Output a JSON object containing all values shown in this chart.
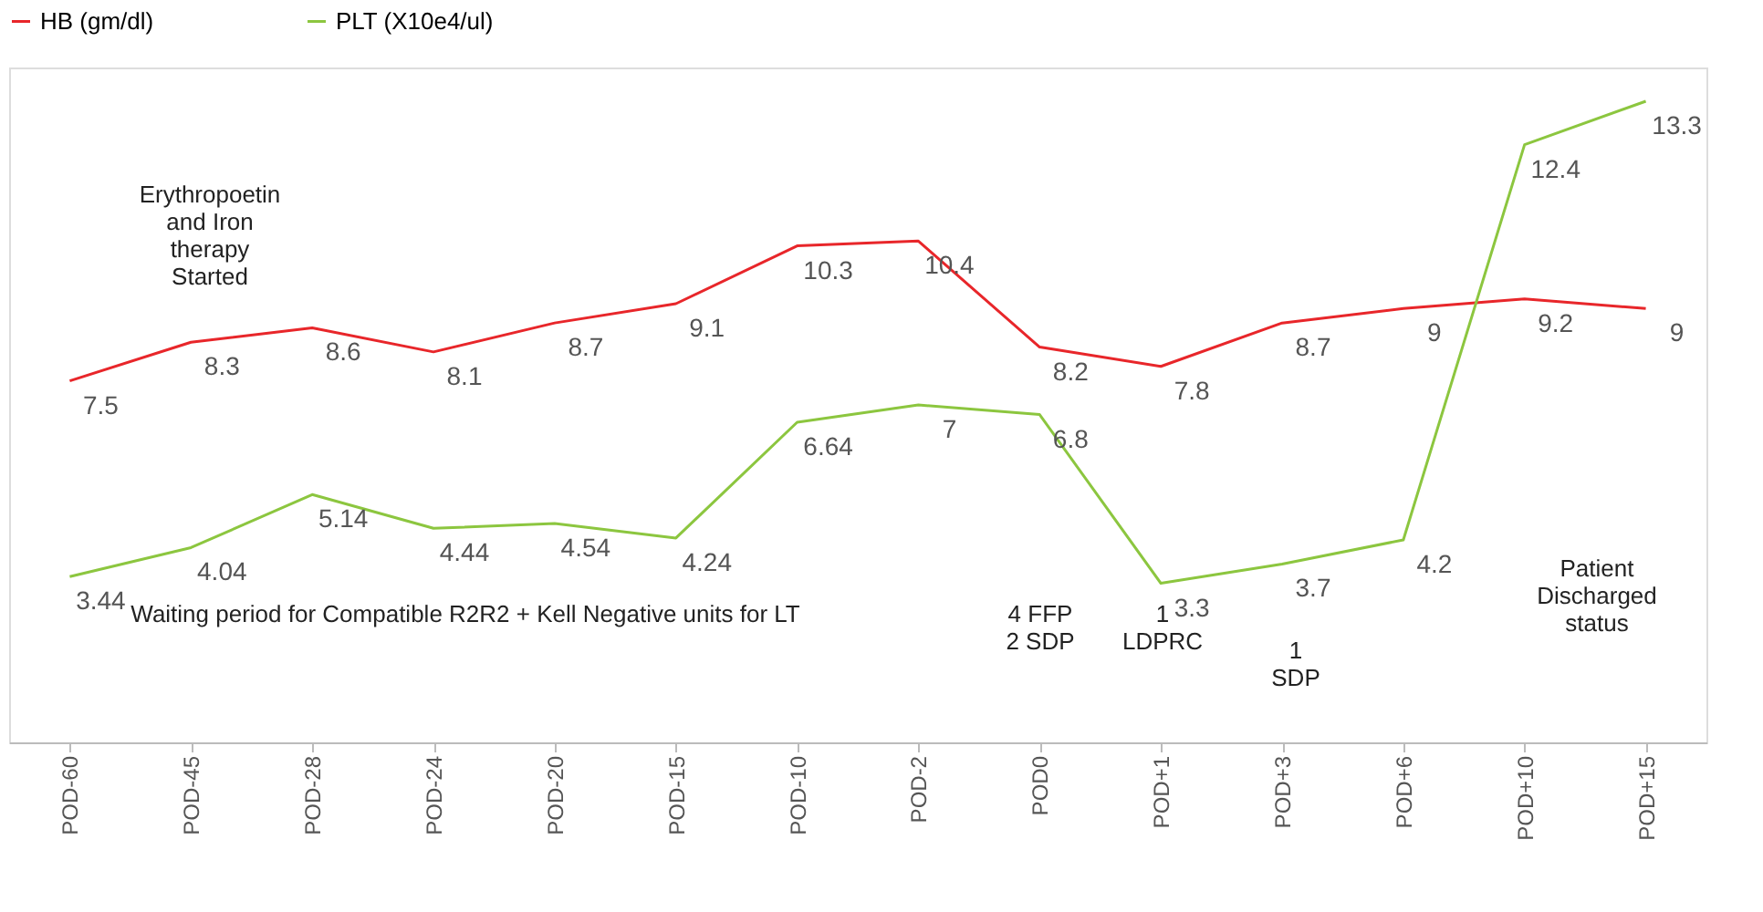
{
  "chart_data": {
    "type": "line",
    "categories": [
      "POD-60",
      "POD-45",
      "POD-28",
      "POD-24",
      "POD-20",
      "POD-15",
      "POD-10",
      "POD-2",
      "POD0",
      "POD+1",
      "POD+3",
      "POD+6",
      "POD+10",
      "POD+15"
    ],
    "series": [
      {
        "name": "HB (gm/dl)",
        "color": "#e8262a",
        "values": [
          7.5,
          8.3,
          8.6,
          8.1,
          8.7,
          9.1,
          10.3,
          10.4,
          8.2,
          7.8,
          8.7,
          9,
          9.2,
          9
        ]
      },
      {
        "name": "PLT (X10e4/ul)",
        "color": "#8cc63f",
        "values": [
          3.44,
          4.04,
          5.14,
          4.44,
          4.54,
          4.24,
          6.64,
          7,
          6.8,
          3.3,
          3.7,
          4.2,
          12.4,
          13.3
        ]
      }
    ],
    "ylim": [
      0,
      14
    ],
    "tick_labels": "x",
    "data_labels": true,
    "legend": "top",
    "grid": false,
    "marker": "none",
    "annotations": [
      "Erythropoetin\nand Iron\ntherapy\nStarted",
      "Waiting period for Compatible R2R2 + Kell Negative units for LT",
      "4 FFP\n2 SDP",
      "1\nLDPRC",
      "1\nSDP",
      "Patient\nDischarged\nstatus"
    ]
  }
}
